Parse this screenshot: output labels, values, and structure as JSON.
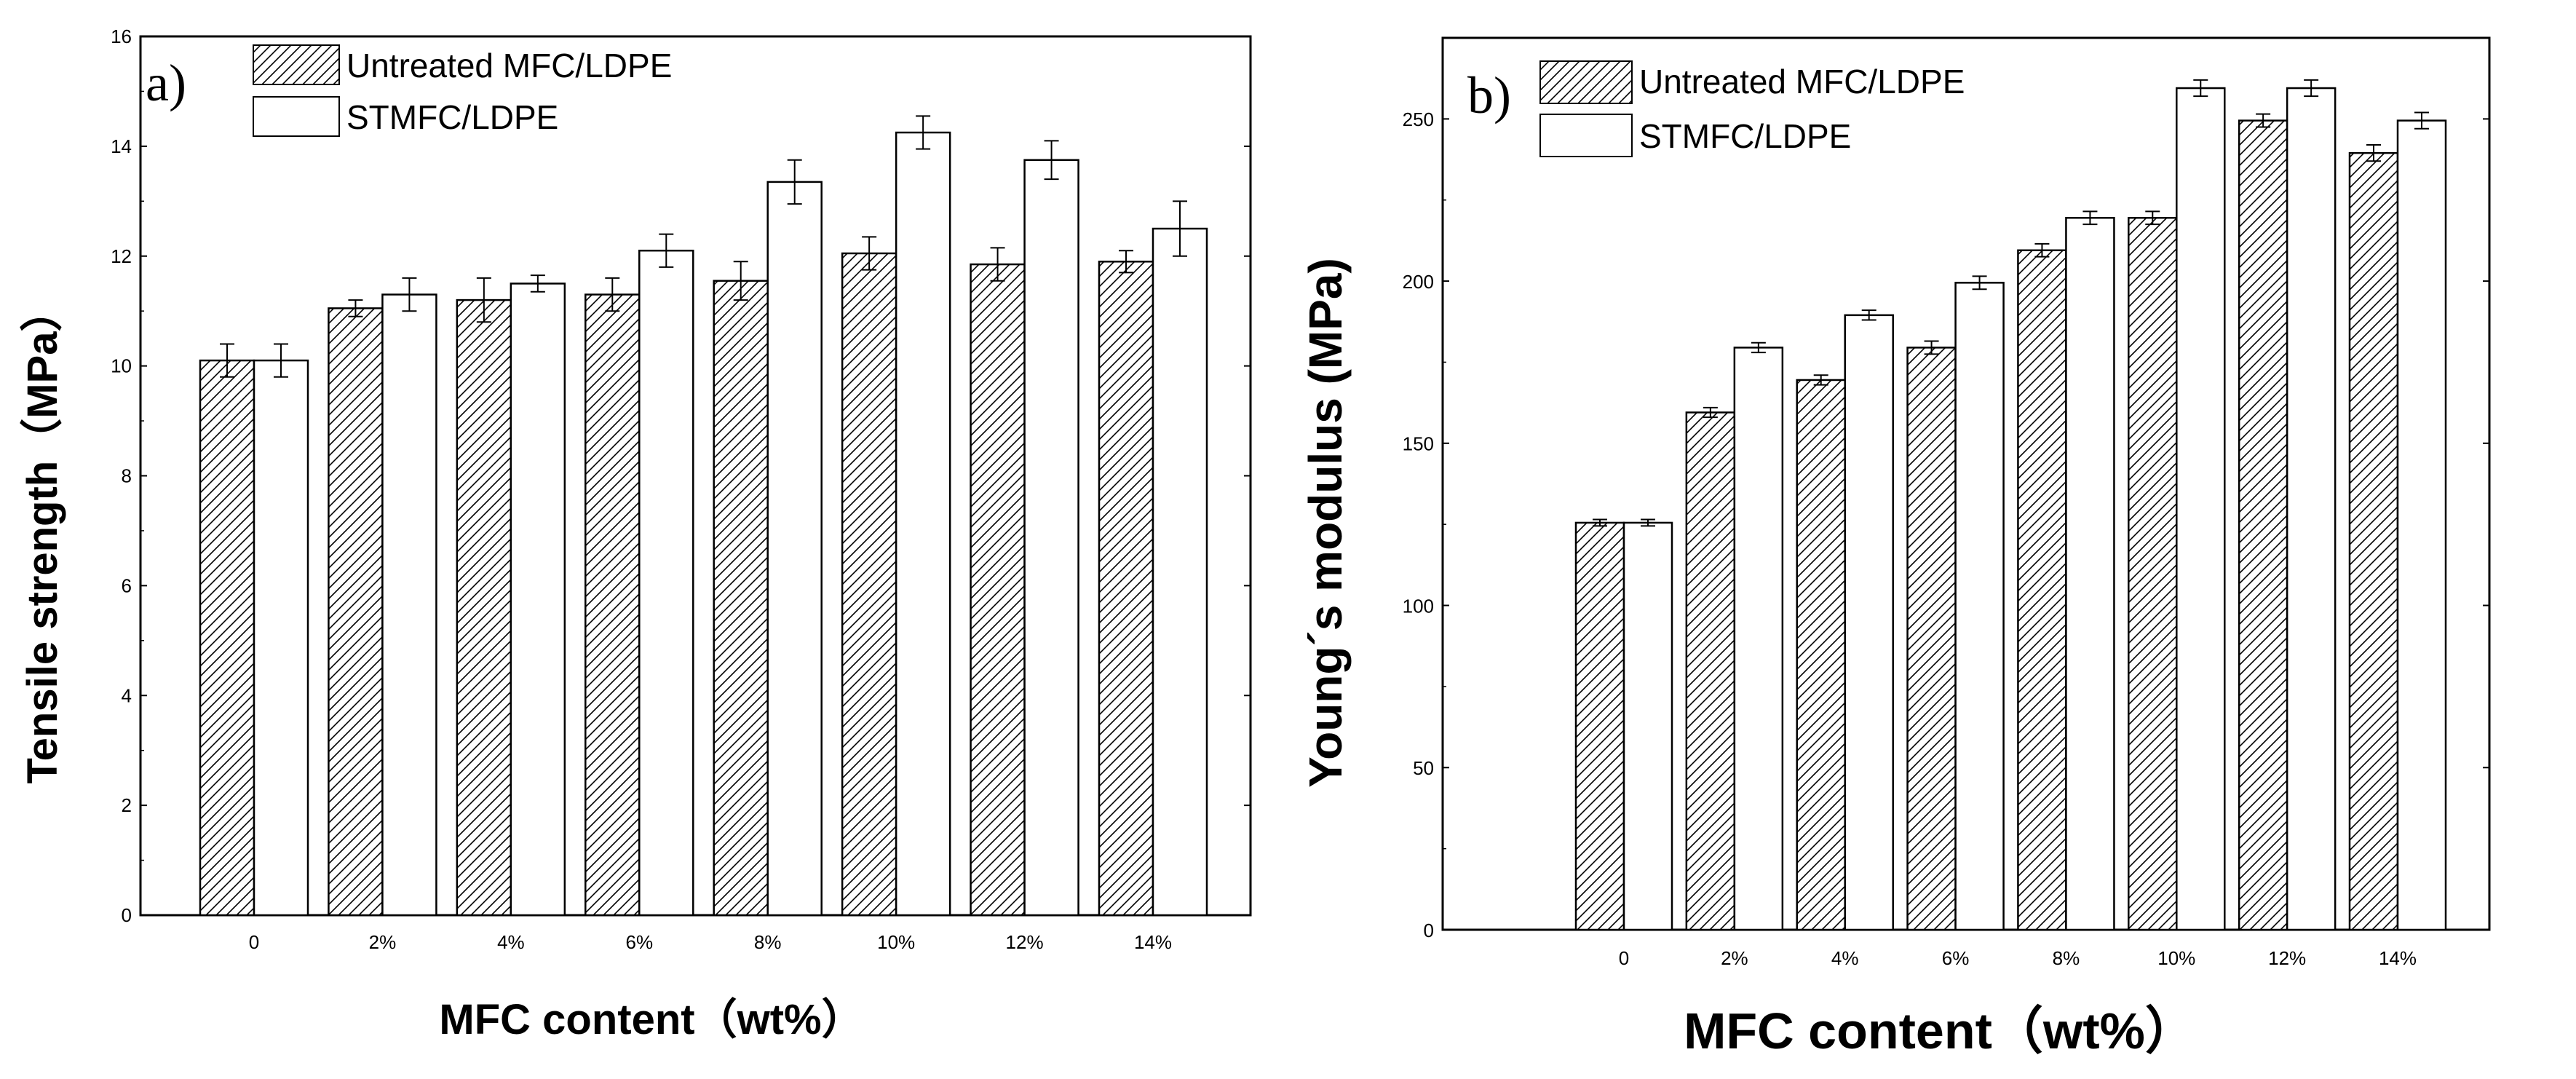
{
  "chart_data": [
    {
      "type": "bar",
      "panel_label": "a)",
      "categories": [
        "0",
        "2%",
        "4%",
        "6%",
        "8%",
        "10%",
        "12%",
        "14%"
      ],
      "series": [
        {
          "name": "Untreated MFC/LDPE",
          "pattern": "hatch",
          "values": [
            10.1,
            11.05,
            11.2,
            11.3,
            11.55,
            12.05,
            11.85,
            11.9
          ],
          "errors": [
            0.3,
            0.15,
            0.4,
            0.3,
            0.35,
            0.3,
            0.3,
            0.2
          ]
        },
        {
          "name": "STMFC/LDPE",
          "pattern": "blank",
          "values": [
            10.1,
            11.3,
            11.5,
            12.1,
            13.35,
            14.25,
            13.75,
            12.5
          ],
          "errors": [
            0.3,
            0.3,
            0.15,
            0.3,
            0.4,
            0.3,
            0.35,
            0.5
          ]
        }
      ],
      "xlabel": "MFC content（wt%）",
      "ylabel": "Tensile strength（MPa）",
      "ylim": [
        0,
        16
      ],
      "yticks": [
        "0",
        "2",
        "4",
        "6",
        "8",
        "10",
        "12",
        "14",
        "16"
      ],
      "legend_position": "top-left",
      "grid": false
    },
    {
      "type": "bar",
      "panel_label": "b)",
      "categories": [
        "0",
        "2%",
        "4%",
        "6%",
        "8%",
        "10%",
        "12%",
        "14%"
      ],
      "series": [
        {
          "name": "Untreated MFC/LDPE",
          "pattern": "hatch",
          "values": [
            125.5,
            159.5,
            169.5,
            179.5,
            209.5,
            219.5,
            249.5,
            239.5
          ],
          "errors": [
            1,
            1.5,
            1.5,
            2,
            2,
            2,
            2,
            2.5
          ]
        },
        {
          "name": "STMFC/LDPE",
          "pattern": "blank",
          "values": [
            125.5,
            179.5,
            189.5,
            199.5,
            219.5,
            259.5,
            259.5,
            249.5
          ],
          "errors": [
            1,
            1.5,
            1.5,
            2,
            2,
            2.5,
            2.5,
            2.5
          ]
        }
      ],
      "xlabel": "MFC content（wt%）",
      "ylabel": "Young´s modulus (MPa)",
      "ylim": [
        0,
        275
      ],
      "yticks": [
        "0",
        "50",
        "100",
        "150",
        "200",
        "250"
      ],
      "legend_position": "top-left",
      "grid": false
    }
  ],
  "colors": {
    "ink": "#000000",
    "background": "#ffffff"
  }
}
